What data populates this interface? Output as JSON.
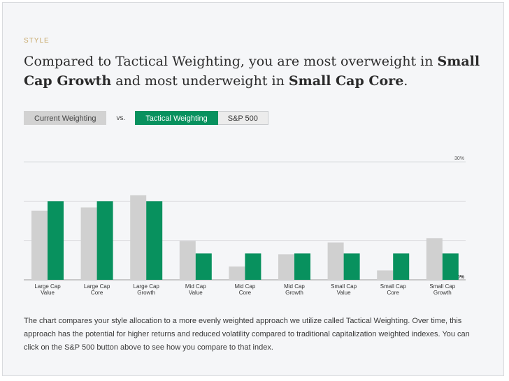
{
  "eyebrow": "STYLE",
  "headline": {
    "p1": "Compared to Tactical Weighting, you are most overweight in ",
    "b1": "Small Cap Growth",
    "p2": " and most underweight in ",
    "b2": "Small Cap Core",
    "p3": "."
  },
  "controls": {
    "current_label": "Current Weighting",
    "vs_label": "vs.",
    "tactical_label": "Tactical Weighting",
    "sp_label": "S&P 500"
  },
  "description": "The chart compares your style allocation to a more evenly weighted approach we utilize called Tactical Weighting. Over time, this approach has the potential for higher returns and reduced volatility compared to traditional capitalization weighted indexes. You can click on the S&P 500 button above to see how you compare to that index.",
  "colors": {
    "current": "#d0d0d0",
    "tactical": "#08915e"
  },
  "chart_data": {
    "type": "bar",
    "categories": [
      [
        "Large Cap",
        "Value"
      ],
      [
        "Large Cap",
        "Core"
      ],
      [
        "Large Cap",
        "Growth"
      ],
      [
        "Mid Cap",
        "Value"
      ],
      [
        "Mid Cap",
        "Core"
      ],
      [
        "Mid Cap",
        "Growth"
      ],
      [
        "Small Cap",
        "Value"
      ],
      [
        "Small Cap",
        "Core"
      ],
      [
        "Small Cap",
        "Growth"
      ]
    ],
    "series": [
      {
        "name": "Current Weighting",
        "values": [
          17.6,
          18.4,
          21.5,
          9.9,
          3.4,
          6.5,
          9.5,
          2.4,
          10.6
        ]
      },
      {
        "name": "Tactical Weighting",
        "values": [
          20.0,
          20.0,
          20.0,
          6.7,
          6.7,
          6.7,
          6.7,
          6.7,
          6.7
        ]
      }
    ],
    "ylim": [
      0,
      30
    ],
    "ytick_labels": {
      "max": "30%",
      "min": "0%"
    },
    "grid": true
  }
}
